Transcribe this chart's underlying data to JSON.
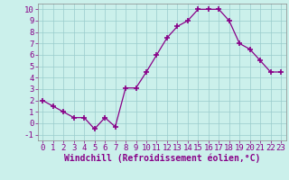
{
  "x": [
    0,
    1,
    2,
    3,
    4,
    5,
    6,
    7,
    8,
    9,
    10,
    11,
    12,
    13,
    14,
    15,
    16,
    17,
    18,
    19,
    20,
    21,
    22,
    23
  ],
  "y": [
    2,
    1.5,
    1,
    0.5,
    0.5,
    -0.5,
    0.5,
    -0.3,
    3.1,
    3.1,
    4.5,
    6.0,
    7.5,
    8.5,
    9.0,
    10.0,
    10.0,
    10.0,
    9.0,
    7.0,
    6.5,
    5.5,
    4.5,
    4.5
  ],
  "line_color": "#880088",
  "marker": "+",
  "marker_size": 4,
  "marker_lw": 1.2,
  "bg_color": "#cbf0eb",
  "grid_color": "#99cccc",
  "xlabel": "Windchill (Refroidissement éolien,°C)",
  "xlabel_color": "#880088",
  "tick_color": "#880088",
  "spine_color": "#888888",
  "xlim": [
    -0.5,
    23.5
  ],
  "ylim": [
    -1.5,
    10.5
  ],
  "yticks": [
    -1,
    0,
    1,
    2,
    3,
    4,
    5,
    6,
    7,
    8,
    9,
    10
  ],
  "xticks": [
    0,
    1,
    2,
    3,
    4,
    5,
    6,
    7,
    8,
    9,
    10,
    11,
    12,
    13,
    14,
    15,
    16,
    17,
    18,
    19,
    20,
    21,
    22,
    23
  ],
  "font_size": 6.5,
  "label_font_size": 7.0
}
